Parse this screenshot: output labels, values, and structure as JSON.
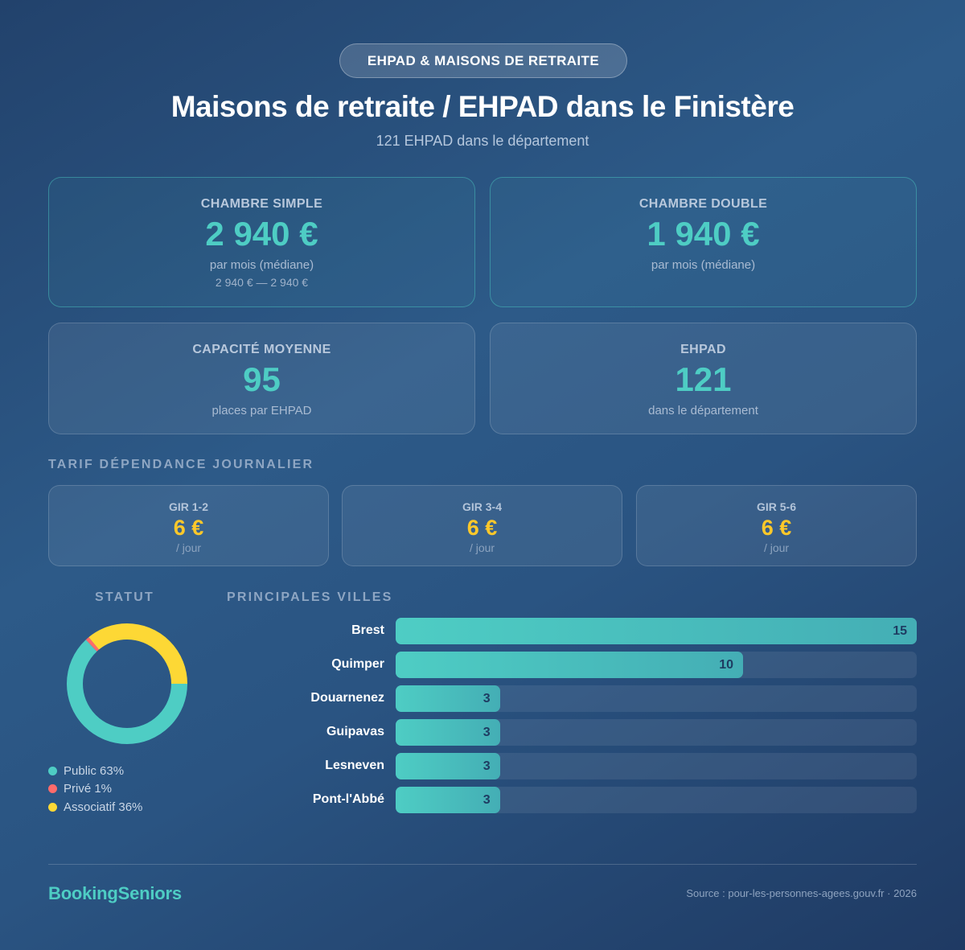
{
  "header": {
    "badge": "EHPAD & MAISONS DE RETRAITE",
    "title": "Maisons de retraite / EHPAD dans le Finistère",
    "subtitle": "121 EHPAD dans le département"
  },
  "cards": [
    {
      "label": "CHAMBRE SIMPLE",
      "value": "2 940 €",
      "sub": "par mois (médiane)",
      "range": "2 940 € — 2 940 €"
    },
    {
      "label": "CHAMBRE DOUBLE",
      "value": "1 940 €",
      "sub": "par mois (médiane)"
    },
    {
      "label": "CAPACITÉ MOYENNE",
      "value": "95",
      "sub": "places par EHPAD"
    },
    {
      "label": "EHPAD",
      "value": "121",
      "sub": "dans le département"
    }
  ],
  "dependance": {
    "heading": "TARIF DÉPENDANCE JOURNALIER",
    "items": [
      {
        "label": "GIR 1-2",
        "value": "6 €",
        "unit": "/ jour"
      },
      {
        "label": "GIR 3-4",
        "value": "6 €",
        "unit": "/ jour"
      },
      {
        "label": "GIR 5-6",
        "value": "6 €",
        "unit": "/ jour"
      }
    ]
  },
  "statut": {
    "heading": "STATUT",
    "legend": [
      {
        "label": "Public 63%",
        "color": "#4ecdc4"
      },
      {
        "label": "Privé 1%",
        "color": "#ff6b6b"
      },
      {
        "label": "Associatif 36%",
        "color": "#fdd835"
      }
    ]
  },
  "villes": {
    "heading": "PRINCIPALES VILLES",
    "rows": [
      {
        "city": "Brest",
        "count": "15"
      },
      {
        "city": "Quimper",
        "count": "10"
      },
      {
        "city": "Douarnenez",
        "count": "3"
      },
      {
        "city": "Guipavas",
        "count": "3"
      },
      {
        "city": "Lesneven",
        "count": "3"
      },
      {
        "city": "Pont-l'Abbé",
        "count": "3"
      }
    ]
  },
  "footer": {
    "brand": "BookingSeniors",
    "source": "Source : pour-les-personnes-agees.gouv.fr · 2026"
  },
  "chart_data": [
    {
      "type": "pie",
      "title": "STATUT",
      "categories": [
        "Public",
        "Privé",
        "Associatif"
      ],
      "values": [
        63,
        1,
        36
      ],
      "colors": [
        "#4ecdc4",
        "#ff6b6b",
        "#fdd835"
      ],
      "donut": true
    },
    {
      "type": "bar",
      "orientation": "horizontal",
      "title": "PRINCIPALES VILLES",
      "categories": [
        "Brest",
        "Quimper",
        "Douarnenez",
        "Guipavas",
        "Lesneven",
        "Pont-l'Abbé"
      ],
      "values": [
        15,
        10,
        3,
        3,
        3,
        3
      ],
      "xlim": [
        0,
        15
      ]
    }
  ]
}
